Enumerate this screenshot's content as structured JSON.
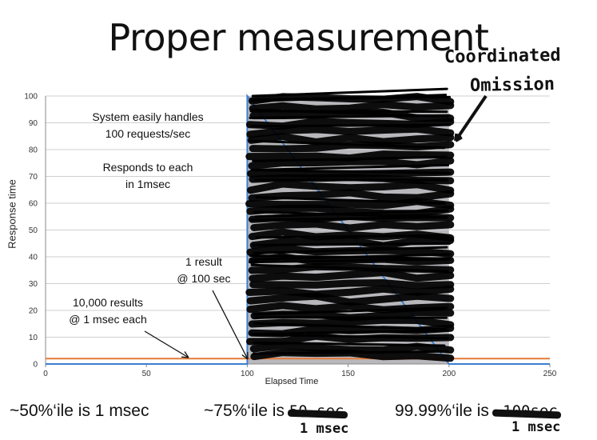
{
  "slide": {
    "title": "Proper measurement",
    "callout": {
      "line1": "Coordinated",
      "line2": "Omission"
    },
    "annotations": {
      "system_l1": "System easily handles",
      "system_l2": "100 requests/sec",
      "responds_l1": "Responds to each",
      "responds_l2": "in 1msec",
      "one_result_l1": "1 result",
      "one_result_l2": "@ 100 sec",
      "many_results_l1": "10,000 results",
      "many_results_l2": "@ 1 msec each"
    },
    "stats": {
      "p50": "~50%‘ile is 1 msec",
      "p75_prefix": "~75%‘ile is ",
      "p75_struck": "50 sec",
      "p75_correction": "1 msec",
      "p9999_prefix": "99.99%‘ile is ",
      "p9999_struck": "~100sec",
      "p9999_correction": "1 msec"
    }
  },
  "chart_data": {
    "type": "line",
    "xlabel": "Elapsed Time",
    "ylabel": "Response time",
    "xlim": [
      0,
      250
    ],
    "ylim": [
      0,
      100
    ],
    "x_ticks": [
      "0",
      "50",
      "100",
      "150",
      "200",
      "250"
    ],
    "y_ticks": [
      "0",
      "10",
      "20",
      "30",
      "40",
      "50",
      "60",
      "70",
      "80",
      "90",
      "100"
    ],
    "grid": true,
    "series": [
      {
        "color": "#3b7fd0",
        "points": [
          [
            0,
            0
          ],
          [
            100,
            0
          ],
          [
            100,
            100
          ],
          [
            200,
            0
          ],
          [
            250,
            0
          ]
        ]
      },
      {
        "color": "#e07b39",
        "points": [
          [
            0,
            2
          ],
          [
            250,
            2
          ]
        ]
      }
    ],
    "shaded_region": {
      "x_start": 100,
      "x_end": 200,
      "y_max": 100,
      "color": "#b8b8bc"
    },
    "colors": {
      "grid": "#cfcfcf",
      "axis": "#888888",
      "scribble": "#000000"
    }
  }
}
